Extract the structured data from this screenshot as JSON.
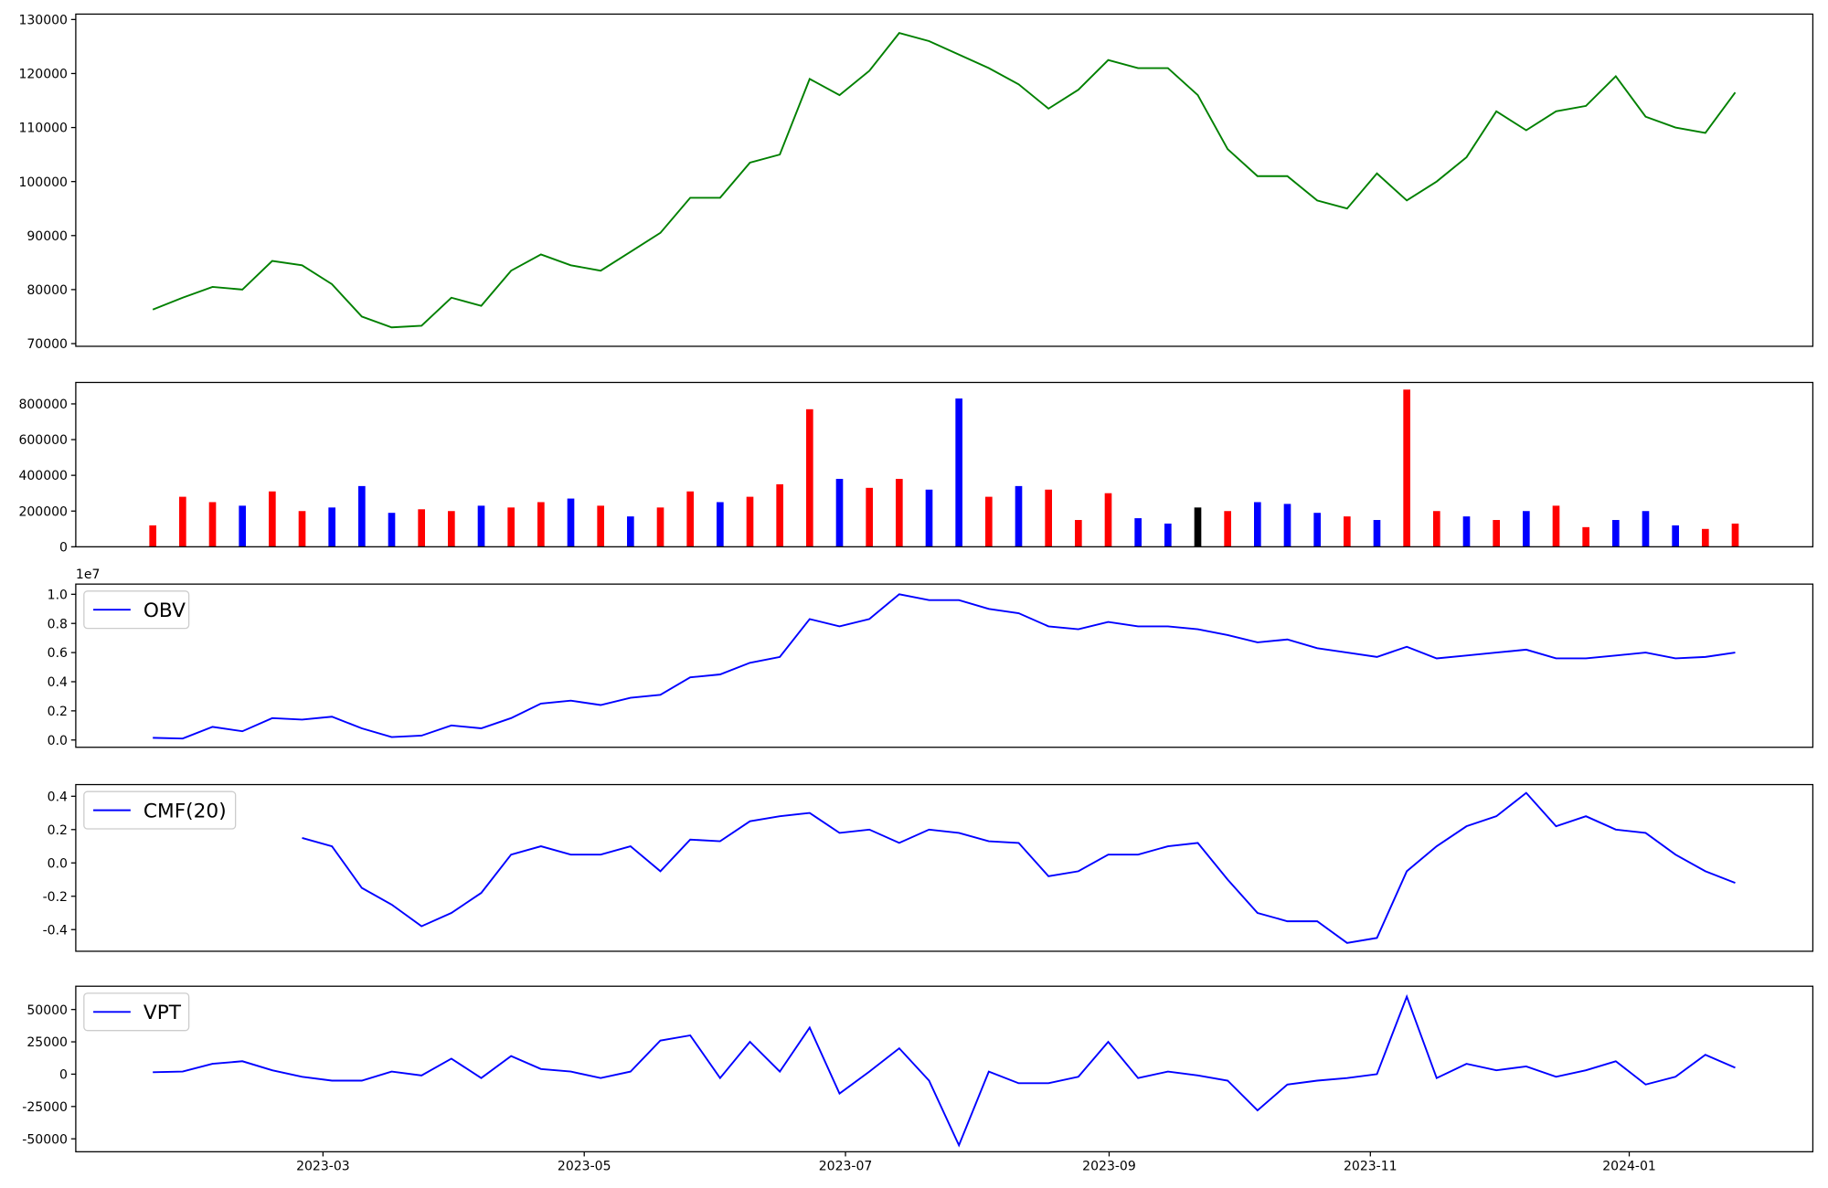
{
  "chart_data": [
    {
      "type": "line",
      "xlim": [
        -2.58,
        55.6
      ],
      "ylim": [
        69500,
        131000
      ],
      "yticks": [
        70000,
        80000,
        90000,
        100000,
        110000,
        120000,
        130000
      ],
      "series": [
        {
          "color": "green",
          "values": [
            76300,
            78500,
            80500,
            80000,
            85300,
            84500,
            81000,
            75000,
            73000,
            73300,
            78500,
            77000,
            83500,
            86500,
            84500,
            83500,
            87000,
            90500,
            97000,
            97000,
            103500,
            105000,
            119000,
            116000,
            120500,
            127500,
            126000,
            123500,
            121000,
            118000,
            113500,
            117000,
            122500,
            121000,
            121000,
            116000,
            106000,
            101000,
            101000,
            96500,
            95000,
            101500,
            96500,
            100000,
            104500,
            113000,
            109500,
            113000,
            114000,
            119500,
            112000,
            110000,
            109000,
            116500
          ]
        }
      ]
    },
    {
      "type": "bar",
      "xlim": [
        -2.58,
        55.6
      ],
      "ylim": [
        0,
        920000
      ],
      "yticks": [
        0,
        200000,
        400000,
        600000,
        800000
      ],
      "values": [
        120000,
        280000,
        250000,
        230000,
        310000,
        200000,
        220000,
        340000,
        190000,
        210000,
        200000,
        230000,
        220000,
        250000,
        270000,
        230000,
        170000,
        220000,
        310000,
        250000,
        280000,
        350000,
        770000,
        380000,
        330000,
        380000,
        320000,
        830000,
        280000,
        340000,
        320000,
        150000,
        300000,
        160000,
        130000,
        220000,
        200000,
        250000,
        240000,
        190000,
        170000,
        150000,
        880000,
        200000,
        170000,
        150000,
        200000,
        230000,
        110000,
        150000,
        200000,
        120000,
        100000,
        130000
      ],
      "colors": [
        "red",
        "red",
        "red",
        "blue",
        "red",
        "red",
        "blue",
        "blue",
        "blue",
        "red",
        "red",
        "blue",
        "red",
        "red",
        "blue",
        "red",
        "blue",
        "red",
        "red",
        "blue",
        "red",
        "red",
        "red",
        "blue",
        "red",
        "red",
        "blue",
        "blue",
        "red",
        "blue",
        "red",
        "red",
        "red",
        "blue",
        "blue",
        "black",
        "red",
        "blue",
        "blue",
        "blue",
        "red",
        "blue",
        "red",
        "red",
        "blue",
        "red",
        "blue",
        "red",
        "red",
        "blue",
        "blue",
        "blue",
        "red",
        "red"
      ]
    },
    {
      "type": "line",
      "xlim": [
        -2.58,
        55.6
      ],
      "ylim": [
        -500000,
        10700000
      ],
      "offset_text": "1e7",
      "legend": "upper left",
      "yticks": [
        {
          "value": 0,
          "label": "0.0"
        },
        {
          "value": 2000000,
          "label": "0.2"
        },
        {
          "value": 4000000,
          "label": "0.4"
        },
        {
          "value": 6000000,
          "label": "0.6"
        },
        {
          "value": 8000000,
          "label": "0.8"
        },
        {
          "value": 10000000,
          "label": "1.0"
        }
      ],
      "series": [
        {
          "name": "OBV",
          "color": "blue",
          "values": [
            150000,
            100000,
            900000,
            600000,
            1500000,
            1400000,
            1600000,
            800000,
            200000,
            300000,
            1000000,
            800000,
            1500000,
            2500000,
            2700000,
            2400000,
            2900000,
            3100000,
            4300000,
            4500000,
            5300000,
            5700000,
            8300000,
            7800000,
            8300000,
            10000000,
            9600000,
            9600000,
            9000000,
            8700000,
            7800000,
            7600000,
            8100000,
            7800000,
            7800000,
            7600000,
            7200000,
            6700000,
            6900000,
            6300000,
            6000000,
            5700000,
            6400000,
            5600000,
            5800000,
            6000000,
            6200000,
            5600000,
            5600000,
            5800000,
            6000000,
            5600000,
            5700000,
            6000000
          ]
        }
      ]
    },
    {
      "type": "line",
      "xlim": [
        -2.58,
        55.6
      ],
      "ylim": [
        -0.53,
        0.47
      ],
      "legend": "upper left",
      "yticks": [
        -0.4,
        -0.2,
        {
          "value": 0,
          "label": "0.0"
        },
        0.2,
        0.4
      ],
      "series": [
        {
          "name": "CMF(20)",
          "color": "blue",
          "values": [
            null,
            null,
            null,
            null,
            null,
            0.15,
            0.1,
            -0.15,
            -0.25,
            -0.38,
            -0.3,
            -0.18,
            0.05,
            0.1,
            0.05,
            0.05,
            0.1,
            -0.05,
            0.14,
            0.13,
            0.25,
            0.28,
            0.3,
            0.18,
            0.2,
            0.12,
            0.2,
            0.18,
            0.13,
            0.12,
            -0.08,
            -0.05,
            0.05,
            0.05,
            0.1,
            0.12,
            -0.1,
            -0.3,
            -0.35,
            -0.35,
            -0.48,
            -0.45,
            -0.05,
            0.1,
            0.22,
            0.28,
            0.42,
            0.22,
            0.28,
            0.2,
            0.18,
            0.05,
            -0.05,
            -0.12
          ]
        }
      ]
    },
    {
      "type": "line",
      "xlim": [
        -2.58,
        55.6
      ],
      "ylim": [
        -60000,
        68000
      ],
      "legend": "upper left",
      "yticks": [
        -50000,
        -25000,
        0,
        25000,
        50000
      ],
      "xticks": [
        {
          "value": 5.7,
          "label": "2023-03"
        },
        {
          "value": 14.45,
          "label": "2023-05"
        },
        {
          "value": 23.2,
          "label": "2023-07"
        },
        {
          "value": 32.03,
          "label": "2023-09"
        },
        {
          "value": 40.78,
          "label": "2023-11"
        },
        {
          "value": 49.45,
          "label": "2024-01"
        }
      ],
      "series": [
        {
          "name": "VPT",
          "color": "blue",
          "values": [
            1500,
            2000,
            8000,
            10000,
            3000,
            -2000,
            -5000,
            -5000,
            2000,
            -1000,
            12000,
            -3000,
            14000,
            4000,
            2000,
            -3000,
            2000,
            26000,
            30000,
            -3000,
            25000,
            2000,
            36000,
            -15000,
            2000,
            20000,
            -5000,
            -55000,
            2000,
            -7000,
            -7000,
            -2000,
            25000,
            -3000,
            2000,
            -1000,
            -5000,
            -28000,
            -8000,
            -5000,
            -3000,
            0,
            60000,
            -3000,
            8000,
            3000,
            6000,
            -2000,
            3000,
            10000,
            -8000,
            -2000,
            15000,
            5000
          ]
        }
      ]
    }
  ]
}
